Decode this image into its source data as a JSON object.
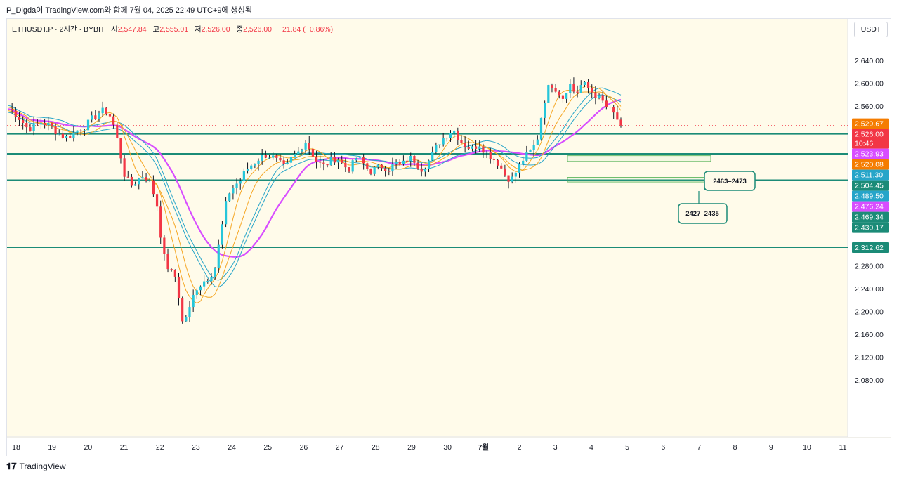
{
  "caption": "P_Digda이 TradingView.com와 함께 7월 04, 2025 22:49 UTC+9에 생성됨",
  "header": {
    "symbol": "ETHUSDT.P · 2시간 · BYBIT",
    "open_label": "시",
    "open": "2,547.84",
    "high_label": "고",
    "high": "2,555.01",
    "low_label": "저",
    "low": "2,526.00",
    "close_label": "종",
    "close": "2,526.00",
    "change": "−21.84 (−0.86%)"
  },
  "currency": "USDT",
  "footer": {
    "logo": "TradingView"
  },
  "colors": {
    "up": "#26c6da",
    "down": "#f23645",
    "magenta": "#d84dff",
    "orange": "#f5a623",
    "teal_line": "#1b8b77",
    "bg": "#fffbea"
  },
  "chart_data": {
    "type": "candlestick",
    "y_range": [
      2060,
      2680
    ],
    "y_ticks": [
      "2,640.00",
      "2,600.00",
      "2,560.00",
      "2,280.00",
      "2,240.00",
      "2,200.00",
      "2,160.00",
      "2,120.00",
      "2,080.00"
    ],
    "x_ticks": [
      "18",
      "19",
      "20",
      "21",
      "22",
      "23",
      "24",
      "25",
      "26",
      "27",
      "28",
      "29",
      "30",
      "7월",
      "2",
      "3",
      "4",
      "5",
      "6",
      "7",
      "8",
      "9",
      "10",
      "11"
    ],
    "horizontal_levels": [
      2511.3,
      2476.24,
      2430.17,
      2312.62
    ],
    "price_labels": [
      {
        "text": "2,529.67",
        "price": 2529.67,
        "color": "#f57c00"
      },
      {
        "text": "2,526.00",
        "price": 2526.0,
        "color": "#f23645",
        "sub": "10:46"
      },
      {
        "text": "2,523.93",
        "price": 2523.93,
        "color": "#d84dff"
      },
      {
        "text": "2,520.08",
        "price": 2520.08,
        "color": "#f57c00"
      },
      {
        "text": "2,511.30",
        "price": 2511.3,
        "color": "#26a5c9"
      },
      {
        "text": "2,504.45",
        "price": 2504.45,
        "color": "#1b8b77"
      },
      {
        "text": "2,489.50",
        "price": 2489.5,
        "color": "#26a5c9"
      },
      {
        "text": "2,476.24",
        "price": 2476.24,
        "color": "#d84dff"
      },
      {
        "text": "2,469.34",
        "price": 2469.34,
        "color": "#1b8b77"
      },
      {
        "text": "2,430.17",
        "price": 2430.17,
        "color": "#1b8b77"
      },
      {
        "text": "2,312.62",
        "price": 2312.62,
        "color": "#1b8b77"
      }
    ],
    "zones": [
      {
        "label": "2463–2473",
        "low": 2463,
        "high": 2473
      },
      {
        "label": "2427–2435",
        "low": 2427,
        "high": 2435
      }
    ],
    "price_anchors": [
      [
        0,
        2555
      ],
      [
        1,
        2548
      ],
      [
        2,
        2535
      ],
      [
        3,
        2520
      ],
      [
        4,
        2525
      ],
      [
        5,
        2532
      ],
      [
        6,
        2528
      ],
      [
        7,
        2520
      ],
      [
        8,
        2510
      ],
      [
        9,
        2505
      ],
      [
        10,
        2512
      ],
      [
        11,
        2520
      ],
      [
        12,
        2525
      ],
      [
        13,
        2538
      ],
      [
        14,
        2548
      ],
      [
        15,
        2552
      ],
      [
        16,
        2540
      ],
      [
        17,
        2495
      ],
      [
        18,
        2440
      ],
      [
        19,
        2420
      ],
      [
        20,
        2430
      ],
      [
        21,
        2440
      ],
      [
        22,
        2425
      ],
      [
        23,
        2390
      ],
      [
        24,
        2300
      ],
      [
        25,
        2270
      ],
      [
        26,
        2260
      ],
      [
        27,
        2180
      ],
      [
        28,
        2200
      ],
      [
        29,
        2240
      ],
      [
        30,
        2250
      ],
      [
        31,
        2260
      ],
      [
        32,
        2275
      ],
      [
        33,
        2340
      ],
      [
        34,
        2405
      ],
      [
        35,
        2420
      ],
      [
        36,
        2430
      ],
      [
        37,
        2450
      ],
      [
        38,
        2460
      ],
      [
        39,
        2470
      ],
      [
        40,
        2475
      ],
      [
        41,
        2470
      ],
      [
        42,
        2460
      ],
      [
        43,
        2450
      ],
      [
        44,
        2470
      ],
      [
        45,
        2480
      ],
      [
        46,
        2500
      ],
      [
        47,
        2480
      ],
      [
        48,
        2460
      ],
      [
        49,
        2455
      ],
      [
        50,
        2465
      ],
      [
        51,
        2470
      ],
      [
        52,
        2455
      ],
      [
        53,
        2450
      ],
      [
        54,
        2470
      ],
      [
        55,
        2460
      ],
      [
        56,
        2445
      ],
      [
        57,
        2450
      ],
      [
        58,
        2455
      ],
      [
        59,
        2450
      ],
      [
        60,
        2460
      ],
      [
        61,
        2455
      ],
      [
        62,
        2470
      ],
      [
        63,
        2465
      ],
      [
        64,
        2450
      ],
      [
        65,
        2460
      ],
      [
        66,
        2480
      ],
      [
        67,
        2500
      ],
      [
        68,
        2510
      ],
      [
        69,
        2520
      ],
      [
        70,
        2500
      ],
      [
        71,
        2490
      ],
      [
        72,
        2485
      ],
      [
        73,
        2495
      ],
      [
        74,
        2480
      ],
      [
        75,
        2470
      ],
      [
        76,
        2460
      ],
      [
        77,
        2440
      ],
      [
        78,
        2430
      ],
      [
        79,
        2450
      ],
      [
        80,
        2470
      ],
      [
        81,
        2480
      ],
      [
        82,
        2500
      ],
      [
        83,
        2565
      ],
      [
        84,
        2600
      ],
      [
        85,
        2590
      ],
      [
        86,
        2575
      ],
      [
        87,
        2600
      ],
      [
        88,
        2580
      ],
      [
        89,
        2600
      ],
      [
        90,
        2590
      ],
      [
        91,
        2580
      ],
      [
        92,
        2570
      ],
      [
        93,
        2555
      ],
      [
        94,
        2545
      ],
      [
        95,
        2526
      ]
    ]
  }
}
